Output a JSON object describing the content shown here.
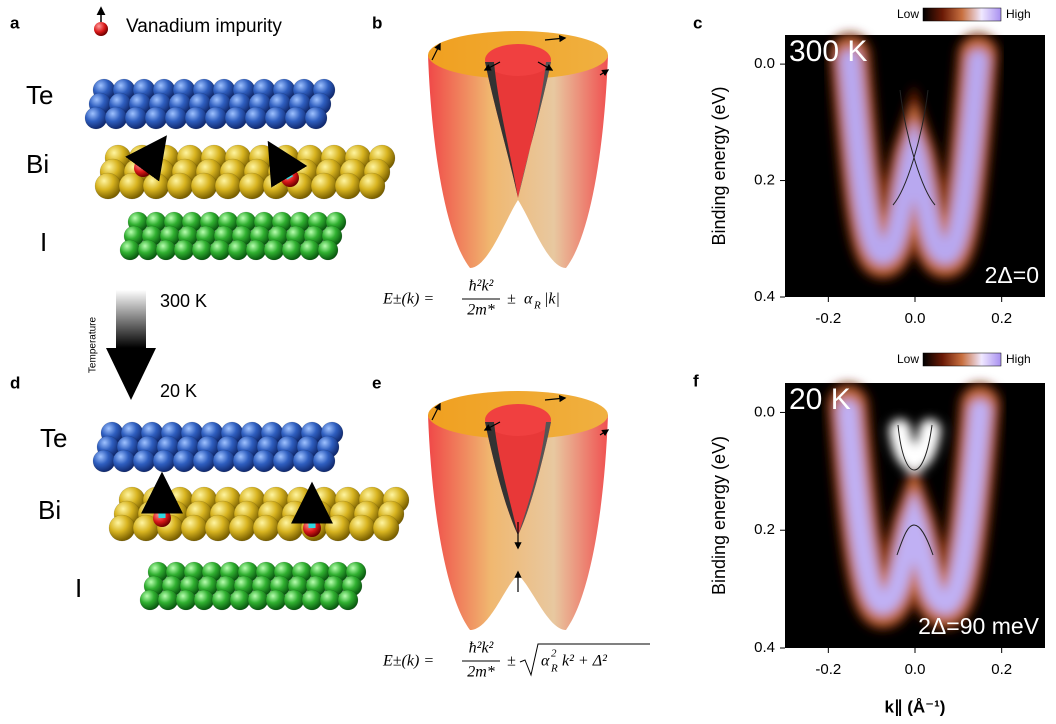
{
  "panel_labels": [
    "a",
    "b",
    "c",
    "d",
    "e",
    "f"
  ],
  "impurity_legend": "Vanadium impurity",
  "layers_300K": [
    "Te",
    "Bi",
    "I"
  ],
  "layers_20K": [
    "Te",
    "Bi",
    "I"
  ],
  "temperature": {
    "axis_label": "Temperature",
    "high": "300 K",
    "low": "20 K"
  },
  "equation_b": {
    "lhs": "E±(k) =",
    "numerator": "ħ²k²",
    "denominator": "2m*",
    "sign": "±",
    "alpha": "α",
    "sub": "R",
    "rest": "|k|"
  },
  "equation_e": {
    "lhs": "E±(k) =",
    "numerator": "ħ²k²",
    "denominator": "2m*",
    "sign": "±",
    "alpha": "α",
    "sup": "2",
    "sub": "R",
    "rest": "k² + Δ²"
  },
  "chart_data": [
    {
      "type": "image",
      "title": "300 K",
      "annotation": "2Δ=0",
      "colorbar": {
        "low": "Low",
        "high": "High"
      },
      "ylabel": "Binding energy (eV)",
      "xlim": [
        -0.3,
        0.3
      ],
      "ylim": [
        -0.05,
        0.4
      ],
      "xticks": [
        -0.2,
        {
          "value": 0,
          "label": "0.0"
        },
        0.2
      ],
      "yticks": [
        {
          "value": 0,
          "label": "0.0"
        },
        0.2,
        0.4
      ]
    },
    {
      "type": "image",
      "title": "20 K",
      "annotation": "2Δ=90 meV",
      "colorbar": {
        "low": "Low",
        "high": "High"
      },
      "ylabel": "Binding energy (eV)",
      "xlabel": "k∥ (Å⁻¹)",
      "xlim": [
        -0.3,
        0.3
      ],
      "ylim": [
        -0.05,
        0.4
      ],
      "xticks": [
        -0.2,
        {
          "value": 0,
          "label": "0.0"
        },
        0.2
      ],
      "yticks": [
        {
          "value": 0,
          "label": "0.0"
        },
        0.2,
        0.4
      ]
    }
  ]
}
